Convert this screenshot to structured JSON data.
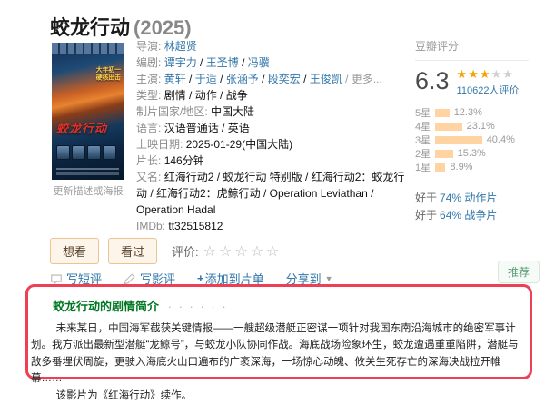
{
  "page": {
    "title": "蛟龙行动",
    "year": "(2025)"
  },
  "poster": {
    "tagline_line1": "大年初一",
    "tagline_line2": "硬核出击",
    "title": "蛟龙行动",
    "update_link": "更新描述或海报"
  },
  "info": {
    "director_label": "导演:",
    "directors": [
      "林超贤"
    ],
    "writer_label": "编剧:",
    "writers": [
      "谭宇力",
      "王圣博",
      "冯骥"
    ],
    "cast_label": "主演:",
    "cast": [
      "黄轩",
      "于适",
      "张涵予",
      "段奕宏",
      "王俊凯"
    ],
    "cast_more": "更多...",
    "genre_label": "类型:",
    "genre": "剧情 / 动作 / 战争",
    "region_label": "制片国家/地区:",
    "region": "中国大陆",
    "language_label": "语言:",
    "language": "汉语普通话 / 英语",
    "release_label": "上映日期:",
    "release": "2025-01-29(中国大陆)",
    "runtime_label": "片长:",
    "runtime": "146分钟",
    "aka_label": "又名:",
    "aka": "红海行动2 / 蛟龙行动 特别版 / 红海行动2：蛟龙行动 / 红海行动2：虎鲸行动 / Operation Leviathan / Operation Hadal",
    "imdb_label": "IMDb:",
    "imdb": "tt32515812"
  },
  "rating": {
    "header": "豆瓣评分",
    "score": "6.3",
    "stars_filled": "★★★",
    "stars_empty": "★★",
    "votes": "110622人评价",
    "breakdown": [
      {
        "label": "5星",
        "pct": "12.3%",
        "value": 12.3
      },
      {
        "label": "4星",
        "pct": "23.1%",
        "value": 23.1
      },
      {
        "label": "3星",
        "pct": "40.4%",
        "value": 40.4
      },
      {
        "label": "2星",
        "pct": "15.3%",
        "value": 15.3
      },
      {
        "label": "1星",
        "pct": "8.9%",
        "value": 8.9
      }
    ],
    "better_than": [
      {
        "prefix": "好于",
        "link": "74% 动作片"
      },
      {
        "prefix": "好于",
        "link": "64% 战争片"
      }
    ]
  },
  "actions": {
    "wish": "想看",
    "seen": "看过",
    "rate_label": "评价:",
    "rate_stars": "☆☆☆☆☆",
    "short_review": "写短评",
    "review": "写影评",
    "add_plus": "+",
    "add_list": "添加到片单",
    "share": "分享到",
    "share_caret": "▼",
    "recommend": "推荐"
  },
  "synopsis": {
    "title": "蛟龙行动的剧情简介",
    "dots": "· · · · · ·",
    "p1": "未来某日，中国海军截获关键情报——一艘超级潜艇正密谋一项针对我国东南沿海城市的绝密军事计划。我方派出最新型潜艇“龙鲸号”，与蛟龙小队协同作战。海底战场险象环生，蛟龙遭遇重重陷阱，潜艇与敌多番埋伏周旋，更驶入海底火山口遍布的广袤深海，一场惊心动魄、攸关生死存亡的深海决战拉开帷幕……",
    "p2": "该影片为《红海行动》续作。"
  },
  "colors": {
    "link_blue": "#3377aa",
    "douban_green": "#007722",
    "star_orange": "#f5a100",
    "bar_orange": "#ffd3a2",
    "highlight_red": "#ee3f55"
  }
}
